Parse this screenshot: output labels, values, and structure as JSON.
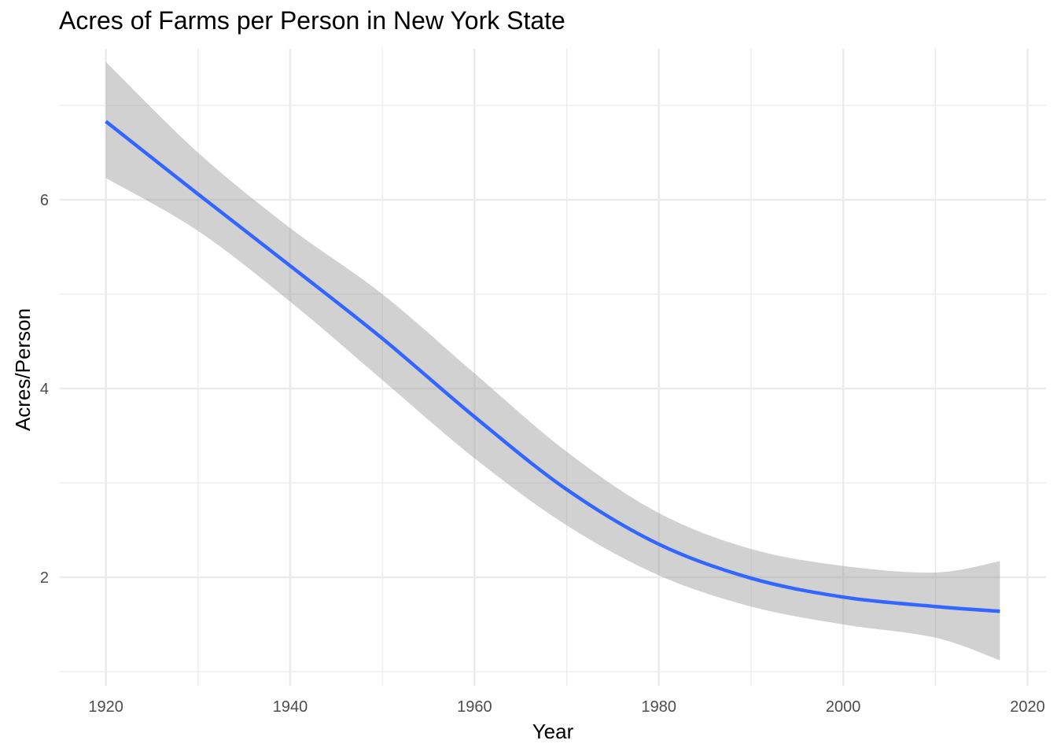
{
  "chart_data": {
    "type": "line",
    "title": "Acres of Farms per Person in New York State",
    "xlabel": "Year",
    "ylabel": "Acres/Person",
    "xlim": [
      1915,
      2022
    ],
    "ylim": [
      0.85,
      7.6
    ],
    "x_ticks": [
      1920,
      1940,
      1960,
      1980,
      2000,
      2020
    ],
    "y_ticks": [
      2,
      4,
      6
    ],
    "grid": true,
    "colors": {
      "line": "#3366FF",
      "band": "#999999",
      "grid": "#ebebeb"
    },
    "series": [
      {
        "x": [
          1920,
          1930,
          1940,
          1950,
          1960,
          1970,
          1980,
          1990,
          2000,
          2010,
          2017
        ],
        "y": [
          6.83,
          6.06,
          5.3,
          4.53,
          3.7,
          2.93,
          2.35,
          1.99,
          1.79,
          1.69,
          1.64
        ],
        "lower": [
          6.23,
          5.67,
          4.92,
          4.09,
          3.26,
          2.55,
          2.02,
          1.69,
          1.5,
          1.36,
          1.12
        ],
        "upper": [
          7.46,
          6.5,
          5.7,
          5.0,
          4.16,
          3.33,
          2.68,
          2.3,
          2.12,
          2.05,
          2.17
        ]
      }
    ]
  }
}
